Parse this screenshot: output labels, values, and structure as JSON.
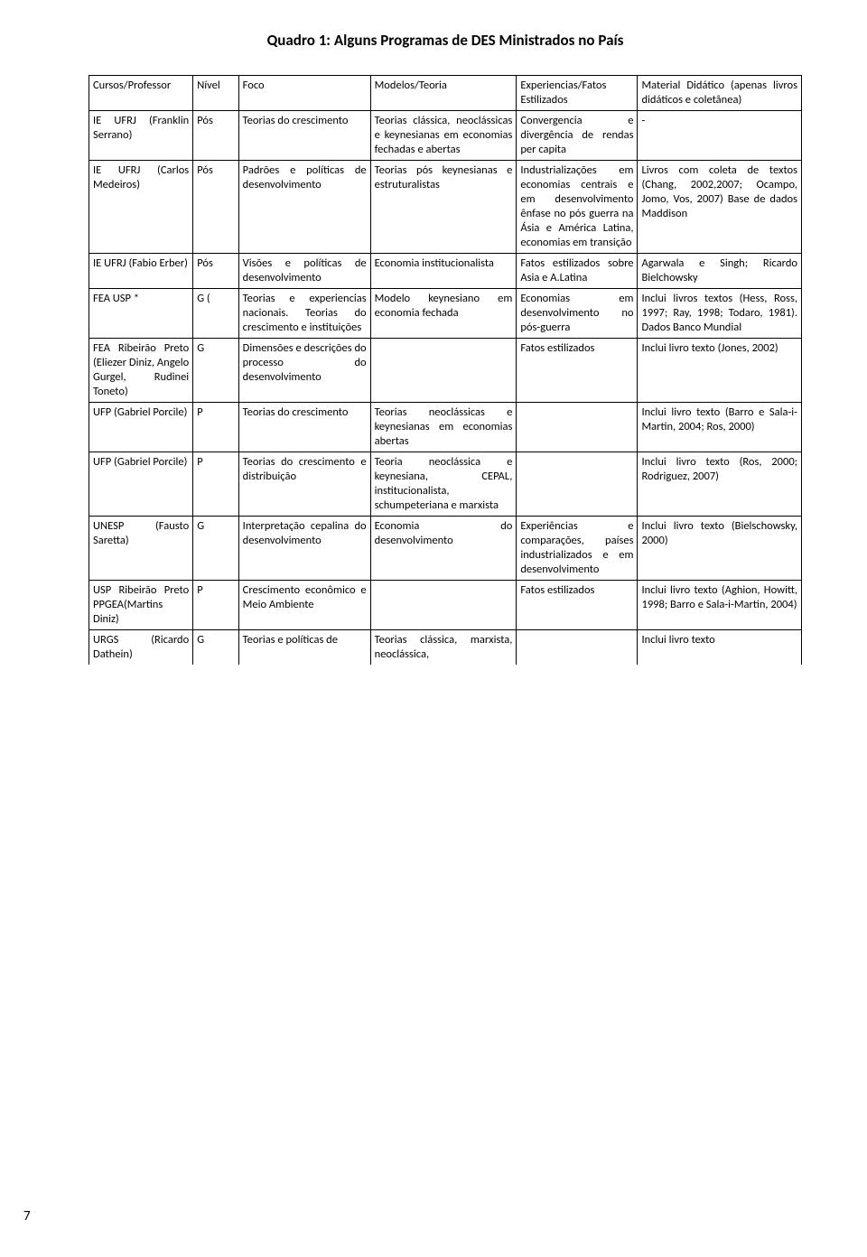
{
  "title": "Quadro 1: Alguns Programas de DES Ministrados no País",
  "pageNumber": "7",
  "headers": {
    "c1": "Cursos/Professor",
    "c2": "Nível",
    "c3": "Foco",
    "c4": "Modelos/Teoria",
    "c5": "Experiencias/Fatos Estilizados",
    "c6": "Material Didático (apenas livros didáticos e coletânea)"
  },
  "rows": [
    {
      "c1": "IE UFRJ (Franklin Serrano)",
      "c2": "Pós",
      "c3": "Teorias do crescimento",
      "c4": "Teorias clássica, neoclássicas e keynesianas em economias fechadas e abertas",
      "c5": "Convergencia e divergência de rendas per capita",
      "c6": "-"
    },
    {
      "c1": "IE UFRJ (Carlos Medeiros)",
      "c2": "Pós",
      "c3": "Padrões e políticas de desenvolvimento",
      "c4": "Teorias pós keynesianas e estruturalistas",
      "c5": "Industrializações em economias centrais e em desenvolvimento ênfase no pós guerra na Ásia e América Latina, economias em transição",
      "c6": "Livros com coleta de textos (Chang, 2002,2007; Ocampo, Jomo, Vos, 2007) Base de dados Maddison"
    },
    {
      "c1": "IE UFRJ (Fabio Erber)",
      "c2": "Pós",
      "c3": "Visões e políticas de desenvolvimento",
      "c4": "Economia institucionalista",
      "c5": "Fatos estilizados sobre Asia e A.Latina",
      "c6": " Agarwala e Singh; Ricardo Bielchowsky"
    },
    {
      "c1": "FEA USP *",
      "c2": "G (",
      "c3": "Teorias e experiencias nacionais. Teorias do crescimento e instituições",
      "c4": "Modelo keynesiano em economia fechada",
      "c5": "Economias em desenvolvimento no pós-guerra",
      "c6": "Inclui livros textos (Hess, Ross, 1997; Ray, 1998; Todaro, 1981). Dados Banco Mundial"
    },
    {
      "c1": "FEA Ribeirão Preto (Eliezer Diniz, Angelo Gurgel, Rudinei Toneto)",
      "c2": "G",
      "c3": "Dimensões e descrições do processo do desenvolvimento",
      "c4": "",
      "c5": "Fatos estilizados",
      "c6": "Inclui livro texto (Jones, 2002)"
    },
    {
      "c1": "UFP (Gabriel Porcile)",
      "c2": "P",
      "c3": "Teorias do crescimento",
      "c4": "Teorias neoclássicas e keynesianas em economias abertas",
      "c5": "",
      "c6": "Inclui livro texto (Barro e Sala-i-Martin, 2004; Ros, 2000)"
    },
    {
      "c1": "UFP (Gabriel Porcile)",
      "c2": "P",
      "c3": "Teorias do crescimento e distribuição",
      "c4": "Teoria neoclássica e keynesiana, CEPAL, institucionalista, schumpeteriana e marxista",
      "c5": "",
      "c6": "Inclui livro texto (Ros, 2000; Rodriguez, 2007)"
    },
    {
      "c1": "UNESP (Fausto Saretta)",
      "c2": "G",
      "c3": "Interpretação cepalina do desenvolvimento",
      "c4": "Economia do desenvolvimento",
      "c5": "Experiências e comparações, países industrializados e em desenvolvimento",
      "c6": "Inclui livro texto (Bielschowsky, 2000)"
    },
    {
      "c1": "USP Ribeirão Preto PPGEA(Martins Diniz)",
      "c2": "P",
      "c3": "Crescimento econômico e Meio Ambiente",
      "c4": "",
      "c5": "Fatos estilizados",
      "c6": "Inclui livro texto (Aghion, Howitt, 1998; Barro e Sala-i-Martin, 2004)"
    },
    {
      "c1": "URGS (Ricardo Dathein)",
      "c2": "G",
      "c3": "Teorias e políticas de",
      "c4": "Teorias clássica, marxista, neoclássica,",
      "c5": "",
      "c6": "Inclui livro texto"
    }
  ]
}
